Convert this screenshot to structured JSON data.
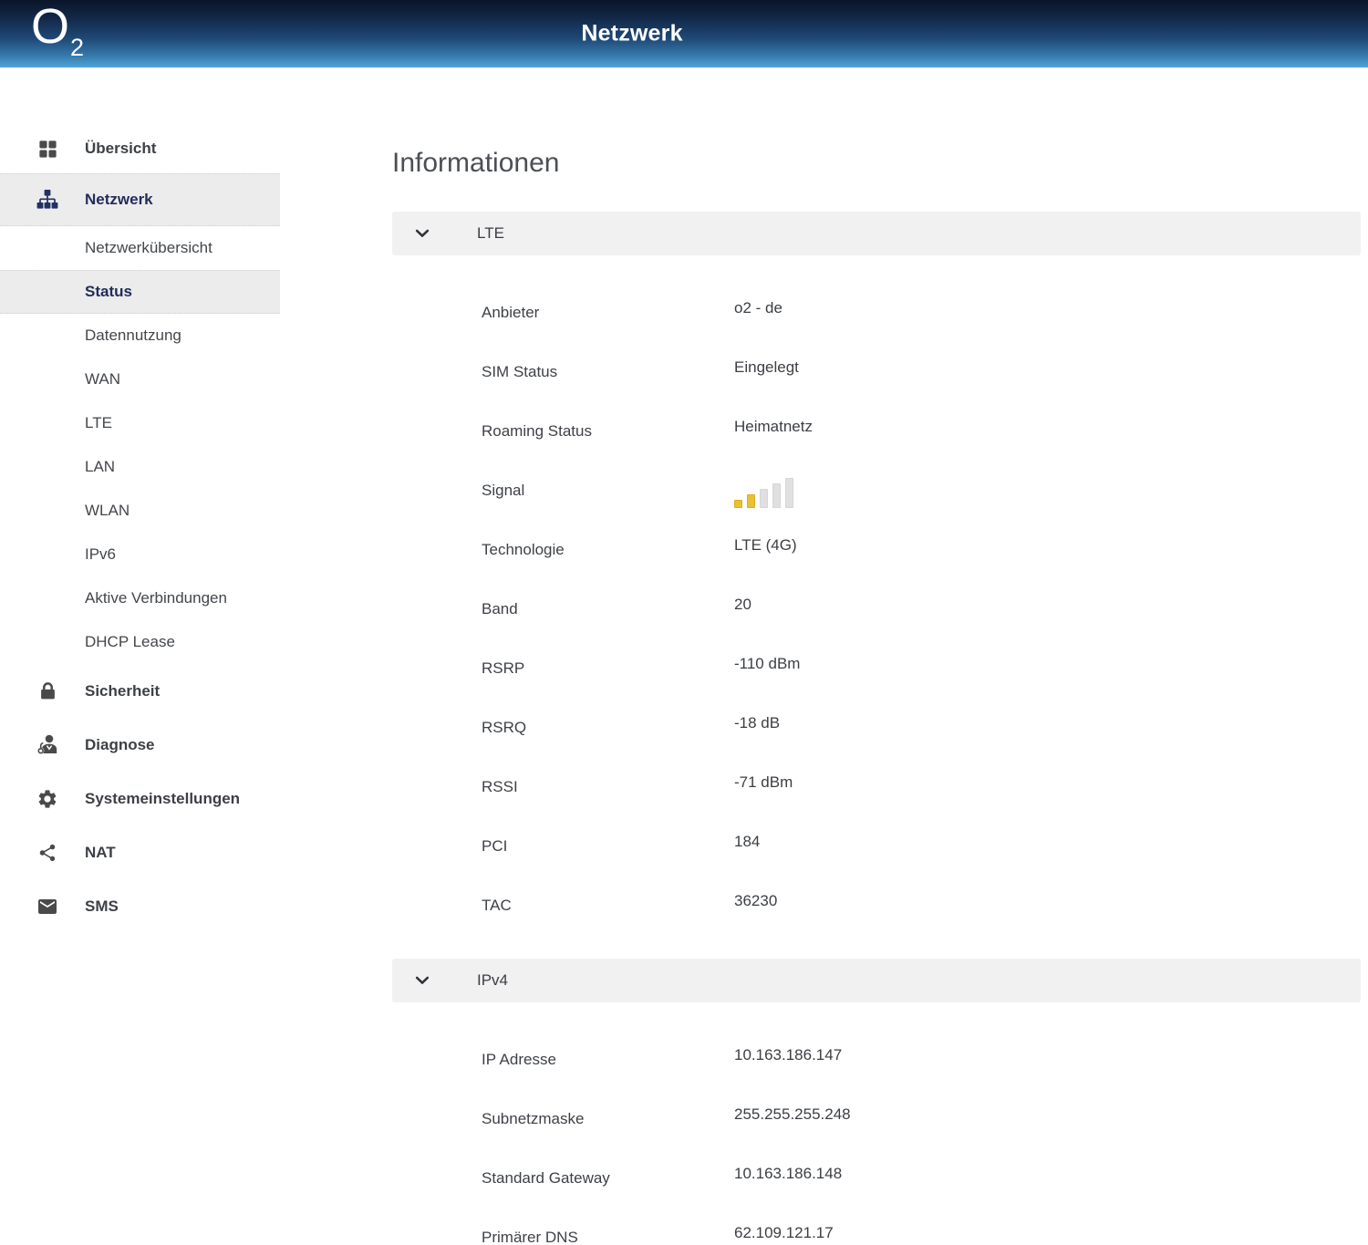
{
  "header": {
    "brand": "O",
    "brand_sub": "2",
    "title": "Netzwerk"
  },
  "sidebar": {
    "items": [
      {
        "label": "Übersicht",
        "icon": "grid-icon",
        "active": false
      },
      {
        "label": "Netzwerk",
        "icon": "network-icon",
        "active": true
      },
      {
        "label": "Sicherheit",
        "icon": "lock-icon",
        "active": false
      },
      {
        "label": "Diagnose",
        "icon": "diagnose-icon",
        "active": false
      },
      {
        "label": "Systemeinstellungen",
        "icon": "gear-icon",
        "active": false
      },
      {
        "label": "NAT",
        "icon": "share-icon",
        "active": false
      },
      {
        "label": "SMS",
        "icon": "envelope-icon",
        "active": false
      }
    ],
    "netzwerk_submenu": [
      {
        "label": "Netzwerkübersicht",
        "active": false
      },
      {
        "label": "Status",
        "active": true
      },
      {
        "label": "Datennutzung",
        "active": false
      },
      {
        "label": "WAN",
        "active": false
      },
      {
        "label": "LTE",
        "active": false
      },
      {
        "label": "LAN",
        "active": false
      },
      {
        "label": "WLAN",
        "active": false
      },
      {
        "label": "IPv6",
        "active": false
      },
      {
        "label": "Aktive Verbindungen",
        "active": false
      },
      {
        "label": "DHCP Lease",
        "active": false
      }
    ]
  },
  "main": {
    "title": "Informationen",
    "sections": [
      {
        "label": "LTE",
        "collapsed": false,
        "rows": [
          {
            "label": "Anbieter",
            "value": "o2 - de"
          },
          {
            "label": "SIM Status",
            "value": "Eingelegt"
          },
          {
            "label": "Roaming Status",
            "value": "Heimatnetz"
          },
          {
            "label": "Signal",
            "value_type": "signal-bars",
            "signal_filled": 2,
            "signal_total": 5
          },
          {
            "label": "Technologie",
            "value": "LTE (4G)"
          },
          {
            "label": "Band",
            "value": "20"
          },
          {
            "label": "RSRP",
            "value": "-110 dBm"
          },
          {
            "label": "RSRQ",
            "value": "-18 dB"
          },
          {
            "label": "RSSI",
            "value": "-71 dBm"
          },
          {
            "label": "PCI",
            "value": "184"
          },
          {
            "label": "TAC",
            "value": "36230"
          }
        ]
      },
      {
        "label": "IPv4",
        "collapsed": false,
        "rows": [
          {
            "label": "IP Adresse",
            "value": "10.163.186.147"
          },
          {
            "label": "Subnetzmaske",
            "value": "255.255.255.248"
          },
          {
            "label": "Standard Gateway",
            "value": "10.163.186.148"
          },
          {
            "label": "Primärer DNS",
            "value": "62.109.121.17"
          }
        ]
      }
    ]
  },
  "colors": {
    "header_gradient_top": "#0a1428",
    "header_gradient_bottom": "#4ea5d8",
    "active_nav_text": "#222d5a",
    "sidebar_highlight": "#ececec",
    "section_header_bg": "#f1f1f2",
    "signal_active": "#ecc033",
    "signal_inactive": "#e0e0e0"
  }
}
